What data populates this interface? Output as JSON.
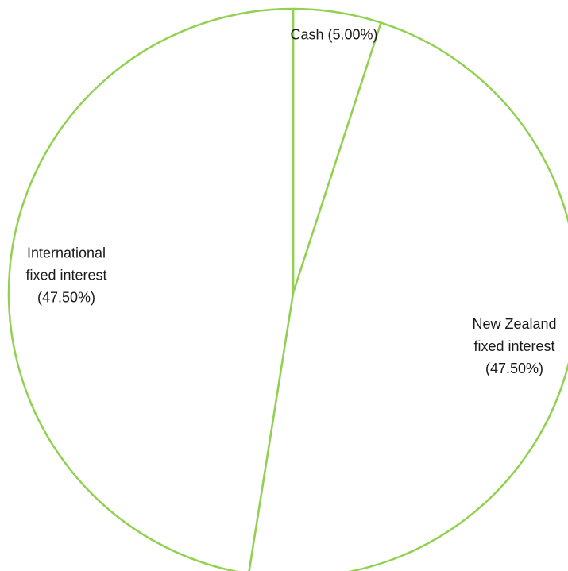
{
  "chart_data": {
    "type": "pie",
    "start": "12 o'clock",
    "direction": "clockwise",
    "slice_fill": "#ffffff",
    "slice_stroke": "#92d050",
    "slices": [
      {
        "label_lines": [
          "Cash (5.00%)"
        ],
        "value": 5.0
      },
      {
        "label_lines": [
          "New Zealand",
          "fixed interest",
          "(47.50%)"
        ],
        "value": 47.5
      },
      {
        "label_lines": [
          "International",
          "fixed interest",
          "(47.50%)"
        ],
        "value": 47.5
      }
    ]
  }
}
